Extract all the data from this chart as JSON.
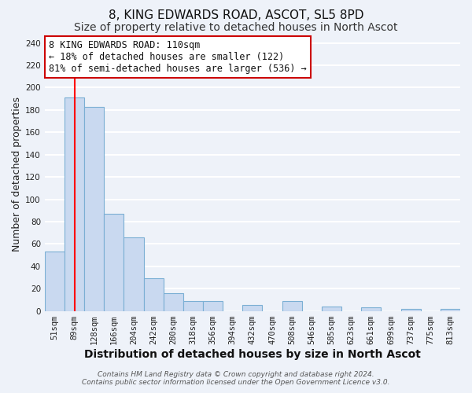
{
  "title": "8, KING EDWARDS ROAD, ASCOT, SL5 8PD",
  "subtitle": "Size of property relative to detached houses in North Ascot",
  "xlabel": "Distribution of detached houses by size in North Ascot",
  "ylabel": "Number of detached properties",
  "bin_labels": [
    "51sqm",
    "89sqm",
    "128sqm",
    "166sqm",
    "204sqm",
    "242sqm",
    "280sqm",
    "318sqm",
    "356sqm",
    "394sqm",
    "432sqm",
    "470sqm",
    "508sqm",
    "546sqm",
    "585sqm",
    "623sqm",
    "661sqm",
    "699sqm",
    "737sqm",
    "775sqm",
    "813sqm"
  ],
  "bar_values": [
    53,
    191,
    183,
    87,
    66,
    29,
    16,
    9,
    9,
    0,
    5,
    0,
    9,
    0,
    4,
    0,
    3,
    0,
    2,
    0,
    2
  ],
  "bar_color": "#c9d9f0",
  "bar_edge_color": "#7bafd4",
  "ylim": [
    0,
    245
  ],
  "yticks": [
    0,
    20,
    40,
    60,
    80,
    100,
    120,
    140,
    160,
    180,
    200,
    220,
    240
  ],
  "annotation_title": "8 KING EDWARDS ROAD: 110sqm",
  "annotation_line1": "← 18% of detached houses are smaller (122)",
  "annotation_line2": "81% of semi-detached houses are larger (536) →",
  "footer1": "Contains HM Land Registry data © Crown copyright and database right 2024.",
  "footer2": "Contains public sector information licensed under the Open Government Licence v3.0.",
  "background_color": "#eef2f9",
  "grid_color": "#ffffff",
  "annotation_box_color": "#ffffff",
  "annotation_box_edge": "#cc0000",
  "title_fontsize": 11,
  "subtitle_fontsize": 10,
  "axis_label_fontsize": 9,
  "tick_fontsize": 7.5,
  "annotation_fontsize": 8.5,
  "footer_fontsize": 6.5
}
